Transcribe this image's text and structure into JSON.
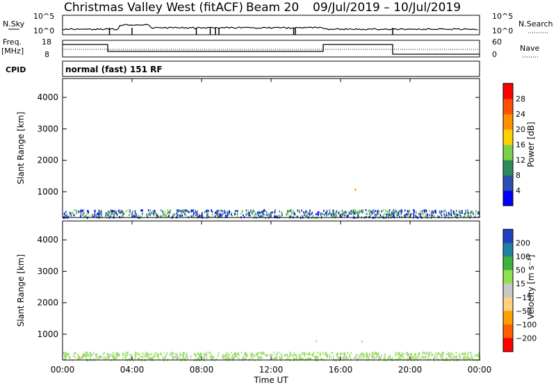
{
  "header": {
    "title": "Christmas Valley West (fitACF)",
    "beam": "Beam 20",
    "date_range": "09/Jul/2019 – 10/Jul/2019"
  },
  "panels": {
    "nsky": {
      "left_label": "N.Sky",
      "left_ticks": [
        "10^5",
        "10^0"
      ],
      "right_label": "N.Search",
      "right_ticks": [
        "10^5",
        "10^0"
      ]
    },
    "freq": {
      "left_label_1": "Freq.",
      "left_label_2": "[MHz]",
      "left_ticks": [
        "18",
        "8"
      ],
      "right_label": "Nave",
      "right_ticks": [
        "60",
        "0"
      ]
    },
    "cpid": {
      "label": "CPID",
      "text": "normal (fast) 151 RF"
    }
  },
  "chart_data": [
    {
      "type": "heatmap",
      "name": "power",
      "ylabel": "Slant Range [km]",
      "yticks": [
        1000,
        2000,
        3000,
        4000
      ],
      "ylim": [
        180,
        4600
      ],
      "colorbar_label": "Power [dB]",
      "colorbar_ticks": [
        "4",
        "8",
        "12",
        "16",
        "20",
        "24",
        "28"
      ],
      "colors": [
        "#0000ff",
        "#2d4fb0",
        "#2e8b57",
        "#7cd04a",
        "#ffd000",
        "#ff9000",
        "#ff5000",
        "#ff0000"
      ]
    },
    {
      "type": "heatmap",
      "name": "velocity",
      "ylabel": "Slant Range [km]",
      "yticks": [
        1000,
        2000,
        3000,
        4000
      ],
      "ylim": [
        180,
        4600
      ],
      "colorbar_label": "Velocity [m s⁻¹]",
      "colorbar_ticks": [
        "200",
        "100",
        "50",
        "15",
        "−15",
        "−50",
        "−100",
        "−200"
      ],
      "colors": [
        "#2040c0",
        "#2080a0",
        "#40b040",
        "#90e050",
        "#c8c8c8",
        "#ffd080",
        "#ffa000",
        "#ff6000",
        "#ff0000"
      ]
    }
  ],
  "xaxis": {
    "label": "Time UT",
    "ticks": [
      "00:00",
      "04:00",
      "08:00",
      "12:00",
      "16:00",
      "20:00",
      "00:00"
    ]
  }
}
